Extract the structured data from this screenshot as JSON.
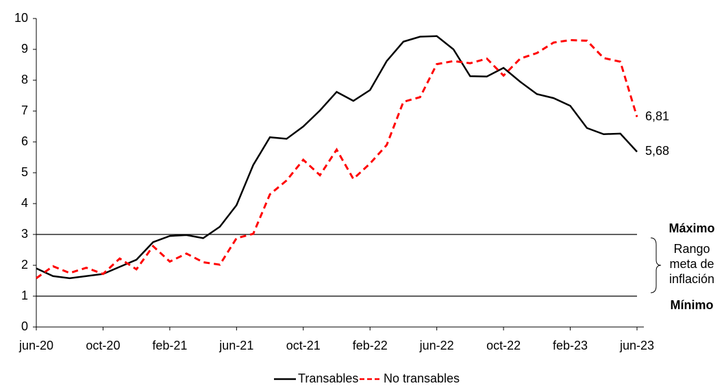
{
  "chart_data": {
    "type": "line",
    "categories": [
      "jun-20",
      null,
      null,
      null,
      "oct-20",
      null,
      null,
      null,
      "feb-21",
      null,
      null,
      null,
      "jun-21",
      null,
      null,
      null,
      "oct-21",
      null,
      null,
      null,
      "feb-22",
      null,
      null,
      null,
      "jun-22",
      null,
      null,
      null,
      "oct-22",
      null,
      null,
      null,
      "feb-23",
      null,
      null,
      null,
      "jun-23"
    ],
    "series": [
      {
        "name": "Transables",
        "color": "#000000",
        "dash": false,
        "values": [
          1.9,
          1.65,
          1.58,
          1.65,
          1.72,
          1.95,
          2.18,
          2.75,
          2.95,
          2.98,
          2.88,
          3.25,
          3.95,
          5.25,
          6.15,
          6.1,
          6.5,
          7.02,
          7.62,
          7.33,
          7.68,
          8.62,
          9.25,
          9.41,
          9.43,
          9.0,
          8.13,
          8.12,
          8.4,
          7.95,
          7.55,
          7.42,
          7.17,
          6.45,
          6.25,
          6.27,
          5.68
        ],
        "value_labels": [
          null,
          null,
          null,
          null,
          null,
          null,
          null,
          null,
          null,
          null,
          null,
          null,
          null,
          null,
          null,
          null,
          null,
          null,
          null,
          null,
          null,
          null,
          null,
          null,
          null,
          null,
          null,
          null,
          null,
          null,
          null,
          null,
          null,
          null,
          null,
          null,
          "5,68"
        ]
      },
      {
        "name": "No transables",
        "color": "#ff0000",
        "dash": true,
        "values": [
          1.58,
          1.97,
          1.75,
          1.92,
          1.72,
          2.22,
          1.87,
          2.62,
          2.12,
          2.38,
          2.1,
          2.02,
          2.88,
          3.02,
          4.3,
          4.75,
          5.42,
          4.92,
          5.75,
          4.8,
          5.3,
          5.9,
          7.3,
          7.45,
          8.52,
          8.62,
          8.55,
          8.7,
          8.15,
          8.7,
          8.88,
          9.22,
          9.3,
          9.28,
          8.72,
          8.6,
          6.81
        ],
        "value_labels": [
          null,
          null,
          null,
          null,
          null,
          null,
          null,
          null,
          null,
          null,
          null,
          null,
          null,
          null,
          null,
          null,
          null,
          null,
          null,
          null,
          null,
          null,
          null,
          null,
          null,
          null,
          null,
          null,
          null,
          null,
          null,
          null,
          null,
          null,
          null,
          null,
          "6,81"
        ]
      }
    ],
    "ylim": [
      0,
      10
    ],
    "yticks": [
      0,
      1,
      2,
      3,
      4,
      5,
      6,
      7,
      8,
      9,
      10
    ],
    "grid": false,
    "reference_lines": [
      {
        "value": 3,
        "label": "Máximo"
      },
      {
        "value": 1,
        "label": "Mínimo"
      }
    ],
    "range_annotation": [
      "Rango",
      "meta de",
      "inflación"
    ],
    "legend": "bottom"
  }
}
